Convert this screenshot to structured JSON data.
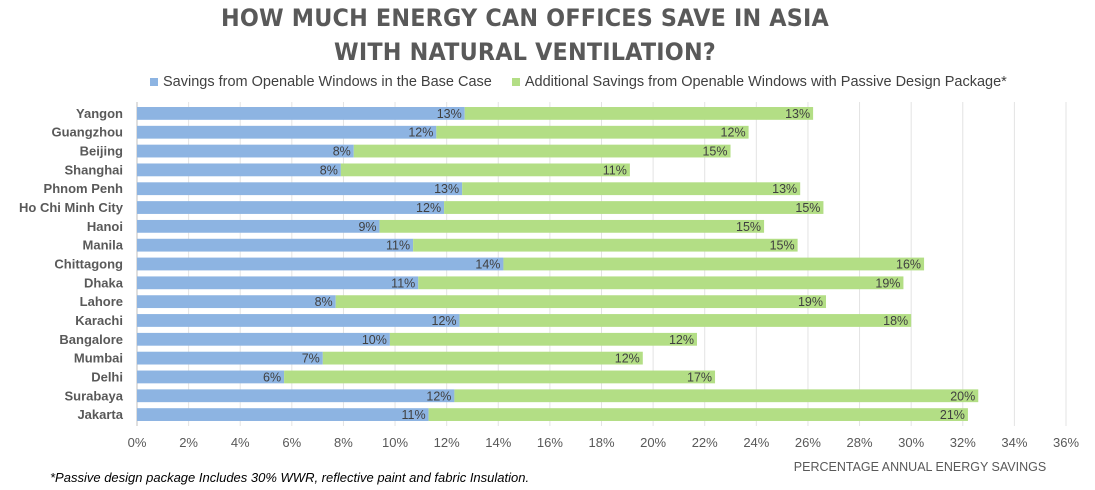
{
  "chart_data": {
    "type": "bar",
    "orientation": "horizontal",
    "stacked": true,
    "title": "HOW MUCH ENERGY CAN OFFICES SAVE IN ASIA WITH NATURAL VENTILATION?",
    "title_lines": [
      "HOW MUCH ENERGY CAN OFFICES SAVE IN ASIA",
      "WITH NATURAL VENTILATION?"
    ],
    "xlabel": "PERCENTAGE ANNUAL ENERGY SAVINGS",
    "ylabel": "",
    "xlim": [
      0,
      36
    ],
    "x_ticks": [
      "0%",
      "2%",
      "4%",
      "6%",
      "8%",
      "10%",
      "12%",
      "14%",
      "16%",
      "18%",
      "20%",
      "22%",
      "24%",
      "26%",
      "28%",
      "30%",
      "32%",
      "34%",
      "36%"
    ],
    "grid": "vertical",
    "legend_position": "top",
    "categories": [
      "Yangon",
      "Guangzhou",
      "Beijing",
      "Shanghai",
      "Phnom Penh",
      "Ho Chi Minh City",
      "Hanoi",
      "Manila",
      "Chittagong",
      "Dhaka",
      "Lahore",
      "Karachi",
      "Bangalore",
      "Mumbai",
      "Delhi",
      "Surabaya",
      "Jakarta"
    ],
    "series": [
      {
        "name": "Savings from Openable Windows in the Base Case",
        "color": "#8db4e2",
        "values": [
          12.7,
          11.6,
          8.4,
          7.9,
          12.6,
          11.9,
          9.4,
          10.7,
          14.2,
          10.9,
          7.7,
          12.5,
          9.8,
          7.2,
          5.7,
          12.3,
          11.3
        ],
        "labels": [
          "13%",
          "12%",
          "8%",
          "8%",
          "13%",
          "12%",
          "9%",
          "11%",
          "14%",
          "11%",
          "8%",
          "12%",
          "10%",
          "7%",
          "6%",
          "12%",
          "11%"
        ]
      },
      {
        "name": "Additional Savings from Openable Windows with Passive Design Package*",
        "color": "#b3de85",
        "values": [
          13.5,
          12.1,
          14.6,
          11.2,
          13.1,
          14.7,
          14.9,
          14.9,
          16.3,
          18.8,
          19.0,
          17.5,
          11.9,
          12.4,
          16.7,
          20.3,
          20.9
        ],
        "labels": [
          "13%",
          "12%",
          "15%",
          "11%",
          "13%",
          "15%",
          "15%",
          "15%",
          "16%",
          "19%",
          "19%",
          "18%",
          "12%",
          "12%",
          "17%",
          "20%",
          "21%"
        ]
      }
    ]
  },
  "footnote": "*Passive design package Includes 30% WWR, reflective paint and fabric Insulation."
}
